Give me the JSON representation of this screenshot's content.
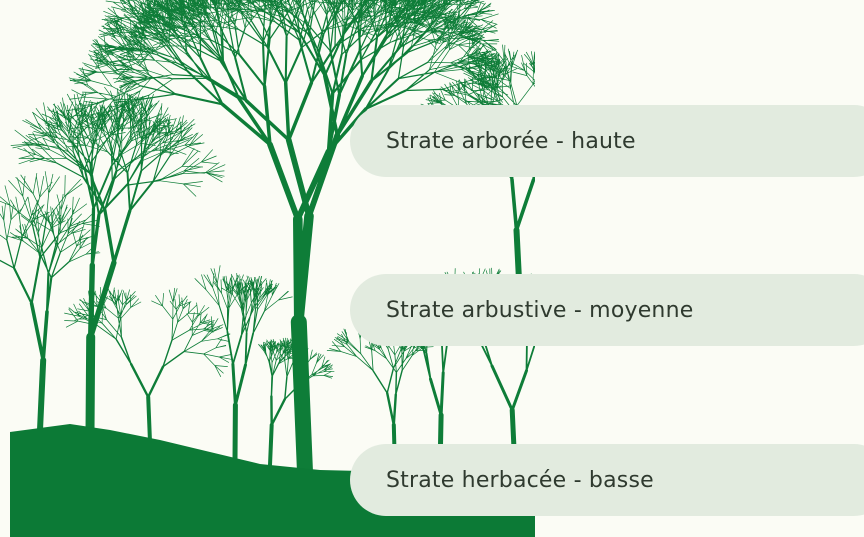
{
  "strata": [
    {
      "label": "Strate arborée - haute"
    },
    {
      "label": "Strate arbustive - moyenne"
    },
    {
      "label": "Strate herbacée - basse"
    }
  ]
}
